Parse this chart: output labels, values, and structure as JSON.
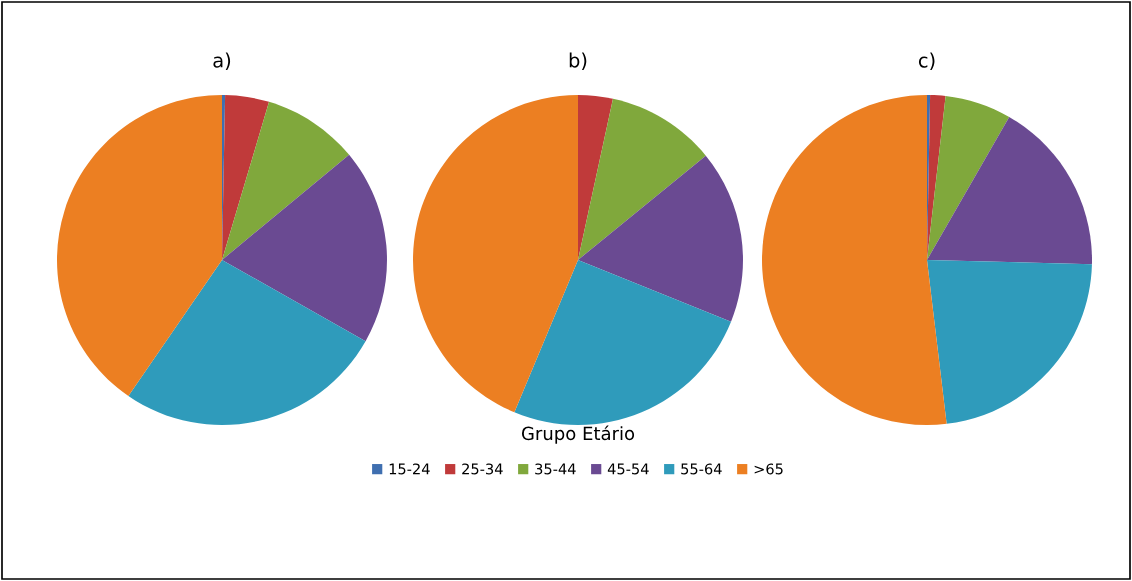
{
  "chart_data": [
    {
      "type": "pie",
      "title": "a)",
      "values": [
        0.3,
        4.3,
        9.4,
        19.2,
        26.4,
        40.4
      ],
      "colors": [
        "#3f6fb0",
        "#c03a3a",
        "#80a83c",
        "#6a4a92",
        "#2f9bbb",
        "#ec7f22"
      ]
    },
    {
      "type": "pie",
      "title": "b)",
      "categories": [
        "15-24",
        "25-34",
        "35-44",
        "45-54",
        "55-64",
        ">65"
      ],
      "values": [
        0,
        3.4,
        10.7,
        17.0,
        25.2,
        43.7
      ],
      "colors": [
        "#3f6fb0",
        "#c03a3a",
        "#80a83c",
        "#6a4a92",
        "#2f9bbb",
        "#ec7f22"
      ],
      "legend": "bottom",
      "legend_title": "Grupo Etário"
    },
    {
      "type": "pie",
      "title": "c)",
      "values": [
        0.3,
        1.5,
        6.5,
        17.1,
        22.7,
        51.9
      ],
      "colors": [
        "#3f6fb0",
        "#c03a3a",
        "#80a83c",
        "#6a4a92",
        "#2f9bbb",
        "#ec7f22"
      ]
    }
  ]
}
